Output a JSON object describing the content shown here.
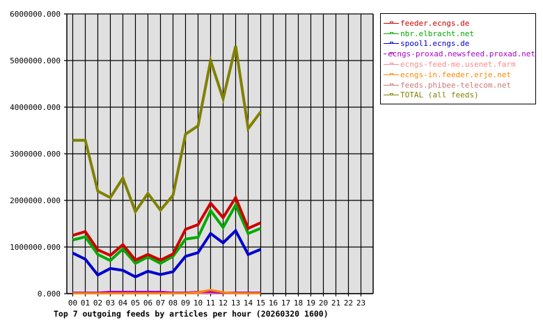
{
  "chart_data": {
    "type": "line",
    "title": "Top 7 outgoing feeds by articles per hour (20260320 1600)",
    "xlabel": "",
    "ylabel": "",
    "ylim": [
      0,
      6000000
    ],
    "grid": true,
    "legend_position": "right-top",
    "categories": [
      "00",
      "01",
      "02",
      "03",
      "04",
      "05",
      "06",
      "07",
      "08",
      "09",
      "10",
      "11",
      "12",
      "13",
      "14",
      "15",
      "16",
      "17",
      "18",
      "19",
      "20",
      "21",
      "22",
      "23"
    ],
    "y_ticks": [
      "0.000",
      "1000000.000",
      "2000000.000",
      "3000000.000",
      "4000000.000",
      "5000000.000",
      "6000000.000"
    ],
    "series": [
      {
        "name": "feeder.ecngs.de",
        "color": "#cc0000",
        "values": [
          1250000,
          1330000,
          940000,
          820000,
          1050000,
          720000,
          840000,
          720000,
          850000,
          1380000,
          1480000,
          1940000,
          1630000,
          2060000,
          1400000,
          1520000
        ]
      },
      {
        "name": "nbr.elbracht.net",
        "color": "#00aa00",
        "values": [
          1150000,
          1220000,
          840000,
          710000,
          960000,
          650000,
          790000,
          650000,
          800000,
          1170000,
          1210000,
          1780000,
          1420000,
          1900000,
          1290000,
          1400000
        ]
      },
      {
        "name": "spool1.ecngs.de",
        "color": "#0000cc",
        "values": [
          870000,
          740000,
          400000,
          540000,
          500000,
          360000,
          480000,
          410000,
          470000,
          800000,
          880000,
          1290000,
          1090000,
          1350000,
          840000,
          950000
        ]
      },
      {
        "name": "ecngs-proxad.newsfeed.proxad.net",
        "color": "#aa00cc",
        "values": [
          20000,
          20000,
          20000,
          40000,
          40000,
          40000,
          40000,
          40000,
          20000,
          20000,
          40000,
          40000,
          20000,
          20000,
          20000,
          20000
        ]
      },
      {
        "name": "ecngs-feed-me.usenet.farm",
        "color": "#ff8888",
        "values": [
          10000,
          10000,
          10000,
          10000,
          10000,
          10000,
          10000,
          10000,
          10000,
          10000,
          10000,
          20000,
          10000,
          10000,
          10000,
          10000
        ]
      },
      {
        "name": "ecngs-in.feeder.erje.net",
        "color": "#ff8800",
        "values": [
          5000,
          5000,
          5000,
          5000,
          5000,
          5000,
          5000,
          5000,
          5000,
          5000,
          30000,
          80000,
          30000,
          5000,
          5000,
          5000
        ]
      },
      {
        "name": "feeds.phibee-telecom.net",
        "color": "#cc7777",
        "values": [
          15000,
          15000,
          15000,
          15000,
          15000,
          15000,
          15000,
          15000,
          15000,
          15000,
          15000,
          15000,
          15000,
          15000,
          15000,
          15000
        ]
      },
      {
        "name": "TOTAL (all feeds)",
        "color": "#808000",
        "values": [
          3290000,
          3290000,
          2200000,
          2060000,
          2480000,
          1760000,
          2150000,
          1790000,
          2110000,
          3420000,
          3600000,
          5000000,
          4180000,
          5310000,
          3540000,
          3900000
        ]
      }
    ]
  },
  "plot": {
    "background": "#e0e0e0",
    "grid_color": "#000000"
  }
}
